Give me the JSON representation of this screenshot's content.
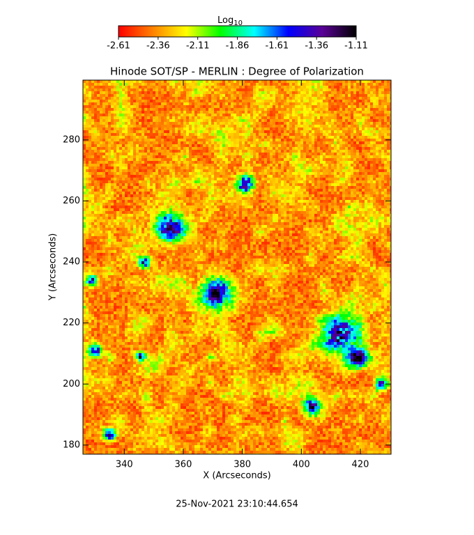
{
  "chart_data": {
    "type": "image",
    "title": "Hinode SOT/SP - MERLIN : Degree of Polarization",
    "xlabel": "X (Arcseconds)",
    "ylabel": "Y (Arcseconds)",
    "xlim": [
      326,
      430.4
    ],
    "xticks": [
      340,
      360,
      380,
      400,
      420
    ],
    "ylim": [
      177,
      299.6
    ],
    "yticks": [
      180,
      200,
      220,
      240,
      260,
      280
    ],
    "colorbar": {
      "label": "Log",
      "label_subscript": "10",
      "lim": [
        -2.61,
        -1.11
      ],
      "ticks": [
        -2.61,
        -2.36,
        -2.11,
        -1.86,
        -1.61,
        -1.36,
        -1.11
      ],
      "colormap": [
        "#ff0000",
        "#ff8000",
        "#ffff00",
        "#00ff00",
        "#00ffff",
        "#0000ff",
        "#5a0096",
        "#000000"
      ]
    },
    "timestamp": "25-Nov-2021 23:10:44.654"
  }
}
